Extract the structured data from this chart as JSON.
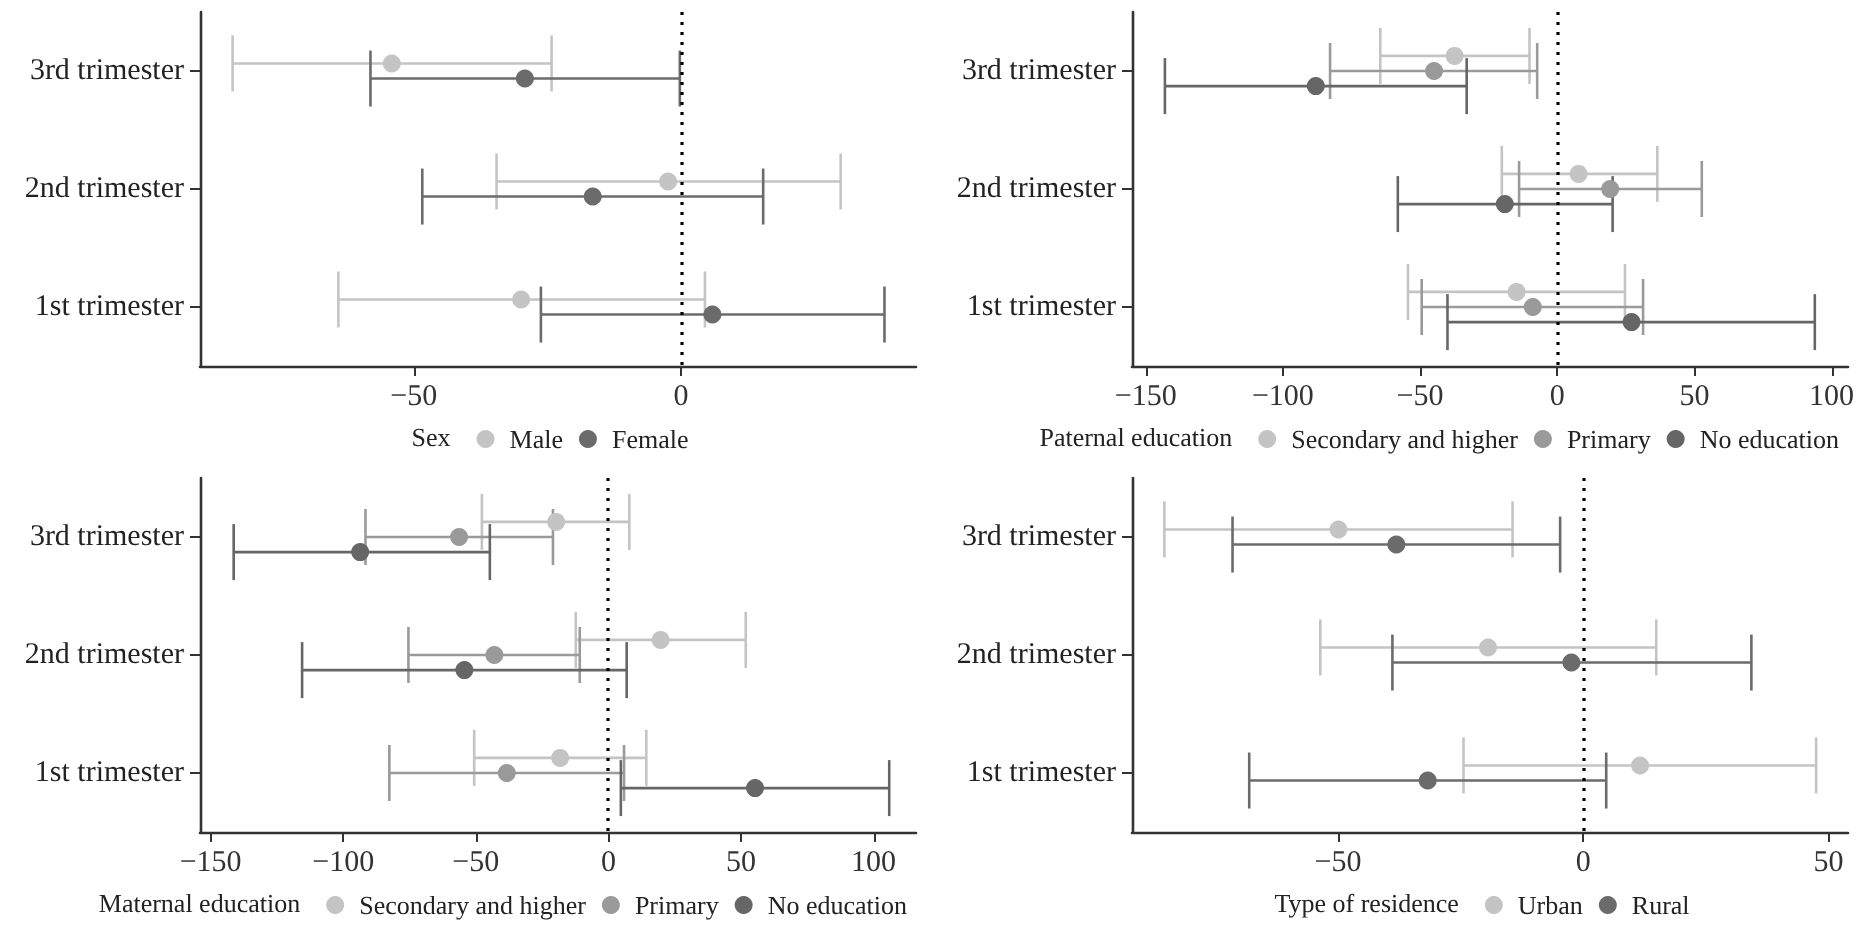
{
  "chart_data": [
    {
      "type": "scatter",
      "orientation": "horizontal",
      "legend": "bottom",
      "legend_title": "Sex",
      "marker": "circle",
      "categories": [
        "3rd trimester",
        "2nd trimester",
        "1st trimester"
      ],
      "xlim": [
        -90,
        44
      ],
      "xticks": [
        {
          "value": -50,
          "label": "−50"
        },
        0
      ],
      "ref_lines": [
        {
          "axis": "x",
          "value": 0,
          "line_style": "dotted",
          "color": "#000000"
        }
      ],
      "series": [
        {
          "name": "Male",
          "color": "#c4c4c4",
          "values": [
            -54.1,
            -2.4,
            -29.9
          ],
          "errors": [
            [
              -83.9,
              -24.2
            ],
            [
              -34.5,
              29.9
            ],
            [
              -64.1,
              4.5
            ]
          ]
        },
        {
          "name": "Female",
          "color": "#6b6b6b",
          "values": [
            -29.2,
            -16.5,
            5.9
          ],
          "errors": [
            [
              -58.1,
              -0.2
            ],
            [
              -48.4,
              15.4
            ],
            [
              -26.2,
              38.1
            ]
          ]
        }
      ]
    },
    {
      "type": "scatter",
      "orientation": "horizontal",
      "legend": "bottom",
      "legend_title": "Paternal education",
      "marker": "circle",
      "categories": [
        "3rd trimester",
        "2nd trimester",
        "1st trimester"
      ],
      "xlim": [
        -155,
        106
      ],
      "xticks": [
        {
          "value": -150,
          "label": "−150"
        },
        {
          "value": -100,
          "label": "−100"
        },
        {
          "value": -50,
          "label": "−50"
        },
        0,
        50,
        100
      ],
      "ref_lines": [
        {
          "axis": "x",
          "value": 0,
          "line_style": "dotted",
          "color": "#000000"
        }
      ],
      "series": [
        {
          "name": "Secondary and higher",
          "color": "#c4c4c4",
          "values": [
            -37.4,
            7.8,
            -14.8
          ],
          "errors": [
            [
              -64.5,
              -10.1
            ],
            [
              -20.2,
              36.5
            ],
            [
              -54.4,
              24.7
            ]
          ]
        },
        {
          "name": "Primary",
          "color": "#9a9a9a",
          "values": [
            -44.9,
            19.3,
            -8.9
          ],
          "errors": [
            [
              -82.8,
              -7.3
            ],
            [
              -13.9,
              52.7
            ],
            [
              -49.4,
              31.3
            ]
          ]
        },
        {
          "name": "No education",
          "color": "#666666",
          "values": [
            -88,
            -19.1,
            27.1
          ],
          "errors": [
            [
              -143,
              -33
            ],
            [
              -58.1,
              20.2
            ],
            [
              -40,
              93.9
            ]
          ]
        }
      ]
    },
    {
      "type": "scatter",
      "orientation": "horizontal",
      "legend": "bottom",
      "legend_title": "Maternal education",
      "marker": "circle",
      "categories": [
        "3rd trimester",
        "2nd trimester",
        "1st trimester"
      ],
      "xlim": [
        -154,
        116
      ],
      "xticks": [
        {
          "value": -150,
          "label": "−150"
        },
        {
          "value": -100,
          "label": "−100"
        },
        {
          "value": -50,
          "label": "−50"
        },
        0,
        50,
        100
      ],
      "ref_lines": [
        {
          "axis": "x",
          "value": 0,
          "line_style": "dotted",
          "color": "#000000"
        }
      ],
      "series": [
        {
          "name": "Secondary and higher",
          "color": "#c4c4c4",
          "values": [
            -19.7,
            19.7,
            -18.2
          ],
          "errors": [
            [
              -47.7,
              7.9
            ],
            [
              -12.3,
              51.8
            ],
            [
              -50.6,
              14.3
            ]
          ]
        },
        {
          "name": "Primary",
          "color": "#9a9a9a",
          "values": [
            -56.3,
            -43,
            -38.3
          ],
          "errors": [
            [
              -91.6,
              -20.9
            ],
            [
              -75.4,
              -10.8
            ],
            [
              -82.6,
              5.9
            ]
          ]
        },
        {
          "name": "No education",
          "color": "#666666",
          "values": [
            -93.6,
            -54.3,
            55.3
          ],
          "errors": [
            [
              -141.3,
              -44.7
            ],
            [
              -115.5,
              6.9
            ],
            [
              4.7,
              105.9
            ]
          ]
        }
      ]
    },
    {
      "type": "scatter",
      "orientation": "horizontal",
      "legend": "bottom",
      "legend_title": "Type of residence",
      "marker": "circle",
      "categories": [
        "3rd trimester",
        "2nd trimester",
        "1st trimester"
      ],
      "xlim": [
        -92,
        54
      ],
      "xticks": [
        {
          "value": -50,
          "label": "−50"
        },
        0,
        50
      ],
      "ref_lines": [
        {
          "axis": "x",
          "value": 0,
          "line_style": "dotted",
          "color": "#000000"
        }
      ],
      "series": [
        {
          "name": "Urban",
          "color": "#c4c4c4",
          "values": [
            -49.9,
            -19.4,
            11.6
          ],
          "errors": [
            [
              -85.4,
              -14.4
            ],
            [
              -53.6,
              14.9
            ],
            [
              -24.4,
              47.5
            ]
          ]
        },
        {
          "name": "Rural",
          "color": "#6b6b6b",
          "values": [
            -38.1,
            -2.4,
            -31.7
          ],
          "errors": [
            [
              -71.5,
              -4.7
            ],
            [
              -38.9,
              34.3
            ],
            [
              -68.1,
              4.7
            ]
          ]
        }
      ]
    }
  ]
}
